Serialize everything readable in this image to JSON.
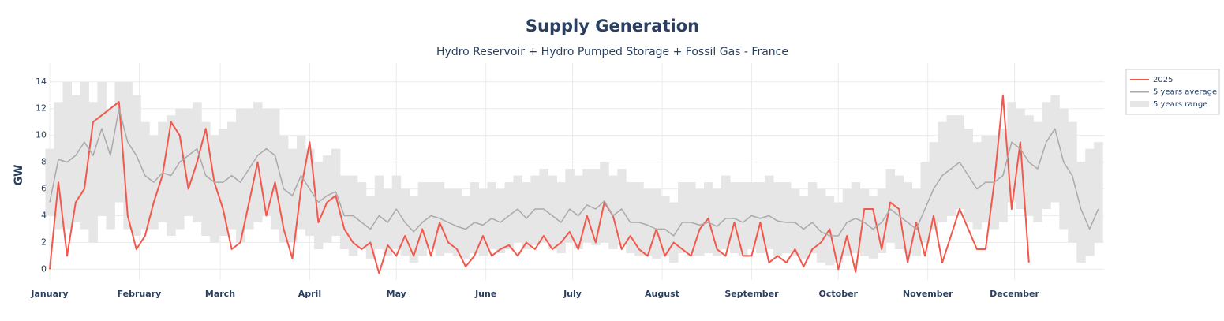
{
  "chart_data": {
    "type": "line",
    "title": "Supply Generation",
    "subtitle": "Hydro Reservoir + Hydro Pumped Storage + Fossil Gas - France",
    "y_label": "GW",
    "xlim": [
      0,
      365
    ],
    "xticks": [
      {
        "value": 0,
        "label": "January"
      },
      {
        "value": 31,
        "label": "February"
      },
      {
        "value": 59,
        "label": "March"
      },
      {
        "value": 90,
        "label": "April"
      },
      {
        "value": 120,
        "label": "May"
      },
      {
        "value": 151,
        "label": "June"
      },
      {
        "value": 181,
        "label": "July"
      },
      {
        "value": 212,
        "label": "August"
      },
      {
        "value": 243,
        "label": "September"
      },
      {
        "value": 273,
        "label": "October"
      },
      {
        "value": 304,
        "label": "November"
      },
      {
        "value": 334,
        "label": "December"
      }
    ],
    "ylim": [
      -0.8,
      15.4
    ],
    "yticks": [
      0,
      2,
      4,
      6,
      8,
      10,
      12,
      14
    ],
    "grid": true,
    "legend": "top-right",
    "x": [
      0,
      3,
      6,
      9,
      12,
      15,
      18,
      21,
      24,
      27,
      30,
      33,
      36,
      39,
      42,
      45,
      48,
      51,
      54,
      57,
      60,
      63,
      66,
      69,
      72,
      75,
      78,
      81,
      84,
      87,
      90,
      93,
      96,
      99,
      102,
      105,
      108,
      111,
      114,
      117,
      120,
      123,
      126,
      129,
      132,
      135,
      138,
      141,
      144,
      147,
      150,
      153,
      156,
      159,
      162,
      165,
      168,
      171,
      174,
      177,
      180,
      183,
      186,
      189,
      192,
      195,
      198,
      201,
      204,
      207,
      210,
      213,
      216,
      219,
      222,
      225,
      228,
      231,
      234,
      237,
      240,
      243,
      246,
      249,
      252,
      255,
      258,
      261,
      264,
      267,
      270,
      273,
      276,
      279,
      282,
      285,
      288,
      291,
      294,
      297,
      300,
      303,
      306,
      309,
      312,
      315,
      318,
      321,
      324,
      327,
      330,
      333,
      336,
      339,
      342,
      345,
      348,
      351,
      354,
      357,
      360,
      363
    ],
    "series": [
      {
        "name": "2025",
        "color": "#f4574b",
        "values": [
          0,
          6.5,
          1,
          5,
          6,
          11,
          11.5,
          12,
          12.5,
          4,
          1.5,
          2.5,
          5,
          7,
          11,
          10,
          6,
          8,
          10.5,
          6.5,
          4.5,
          1.5,
          2,
          5,
          8,
          4,
          6.5,
          3,
          0.8,
          6,
          9.5,
          3.5,
          5,
          5.5,
          3,
          2,
          1.5,
          2,
          -0.3,
          1.8,
          1,
          2.5,
          1,
          3,
          1,
          3.5,
          2,
          1.5,
          0.2,
          1,
          2.5,
          1,
          1.5,
          1.8,
          1,
          2,
          1.5,
          2.5,
          1.5,
          2,
          2.8,
          1.5,
          4,
          2,
          5,
          4,
          1.5,
          2.5,
          1.5,
          1,
          3,
          1,
          2,
          1.5,
          1,
          3,
          3.8,
          1.5,
          1,
          3.5,
          1,
          1,
          3.5,
          0.5,
          1,
          0.5,
          1.5,
          0.2,
          1.5,
          2,
          3,
          0,
          2.5,
          -0.2,
          4.5,
          4.5,
          1.5,
          5,
          4.5,
          0.5,
          3.5,
          1,
          4,
          0.5,
          2.5,
          4.5,
          3,
          1.5,
          1.5,
          6.5,
          13,
          4.5,
          9.5,
          0.5,
          null,
          null,
          null,
          null,
          null,
          null,
          null,
          null
        ]
      },
      {
        "name": "5 years average",
        "color": "#aaaaaa",
        "values": [
          5,
          8.2,
          8,
          8.5,
          9.5,
          8.5,
          10.5,
          8.5,
          12,
          9.5,
          8.5,
          7,
          6.5,
          7.2,
          7,
          8,
          8.5,
          9,
          7,
          6.5,
          6.5,
          7,
          6.5,
          7.5,
          8.5,
          9,
          8.5,
          6,
          5.5,
          7,
          6,
          5,
          5.5,
          5.8,
          4,
          4,
          3.5,
          3,
          4,
          3.5,
          4.5,
          3.5,
          2.8,
          3.5,
          4,
          3.8,
          3.5,
          3.2,
          3,
          3.5,
          3.3,
          3.8,
          3.5,
          4,
          4.5,
          3.8,
          4.5,
          4.5,
          4,
          3.5,
          4.5,
          4,
          4.8,
          4.5,
          5.1,
          4,
          4.5,
          3.5,
          3.5,
          3.3,
          3,
          3,
          2.5,
          3.5,
          3.5,
          3.3,
          3.5,
          3.2,
          3.8,
          3.8,
          3.5,
          4,
          3.8,
          4,
          3.6,
          3.5,
          3.5,
          3,
          3.5,
          2.8,
          2.5,
          2.5,
          3.5,
          3.8,
          3.5,
          3,
          3.5,
          4.5,
          4,
          3.5,
          3,
          4.5,
          6,
          7,
          7.5,
          8,
          7,
          6,
          6.5,
          6.5,
          7,
          9.5,
          9,
          8,
          7.5,
          9.5,
          10.5,
          8,
          7,
          4.5,
          3,
          4.5
        ]
      },
      {
        "name": "5 years range",
        "color": "#e6e6e6",
        "lower": [
          4,
          3,
          3,
          3.5,
          3,
          2,
          4,
          3,
          5,
          3,
          2.5,
          3,
          3,
          3.5,
          2.5,
          3,
          4,
          3.5,
          2.5,
          2,
          2.5,
          3,
          2,
          3,
          3.5,
          4,
          3,
          2,
          2,
          3,
          2.5,
          1.5,
          2,
          2.5,
          1.5,
          1,
          1.5,
          0.8,
          1.5,
          1,
          1.5,
          1,
          0.5,
          1,
          1.5,
          1,
          1.2,
          1,
          0.8,
          1.2,
          1,
          1.5,
          1.2,
          1.5,
          2,
          1.5,
          1.8,
          2,
          1.5,
          1.2,
          2,
          1.5,
          2,
          1.8,
          2,
          1.5,
          1.8,
          1.2,
          1,
          1,
          0.8,
          1,
          0.5,
          1.2,
          1,
          1,
          1.2,
          1,
          1.5,
          1.2,
          1,
          1.5,
          1.2,
          1.5,
          1,
          1.2,
          1,
          0.8,
          1.2,
          0.5,
          0.3,
          0.5,
          1,
          1.2,
          1,
          0.8,
          1.2,
          2,
          1.5,
          1.2,
          1,
          2,
          3,
          3.5,
          4,
          4.5,
          3.5,
          3,
          3.5,
          3,
          3.5,
          5,
          4.5,
          4,
          3.5,
          4.5,
          5,
          3,
          2,
          0.5,
          1,
          2
        ],
        "upper": [
          9,
          12.5,
          14,
          13,
          14,
          12.5,
          14,
          12,
          14,
          14,
          13,
          11,
          10,
          11,
          11.5,
          12,
          12,
          12.5,
          11,
          10,
          10.5,
          11,
          12,
          12,
          12.5,
          12,
          12,
          10,
          9,
          10,
          9,
          8,
          8.5,
          9,
          7,
          7,
          6.5,
          5.5,
          7,
          6,
          7,
          6,
          5.5,
          6.5,
          6.5,
          6.5,
          6,
          6,
          5.5,
          6.5,
          6,
          6.5,
          6,
          6.5,
          7,
          6.5,
          7,
          7.5,
          7,
          6.5,
          7.5,
          7,
          7.5,
          7.5,
          8,
          7,
          7.5,
          6.5,
          6.5,
          6,
          6,
          5.5,
          5,
          6.5,
          6.5,
          6,
          6.5,
          6,
          7,
          6.5,
          6.5,
          6.5,
          6.5,
          7,
          6.5,
          6.5,
          6,
          5.5,
          6.5,
          6,
          5.5,
          5,
          6,
          6.5,
          6,
          5.5,
          6,
          7.5,
          7,
          6.5,
          6,
          8,
          9.5,
          11,
          11.5,
          11.5,
          10.5,
          9.5,
          10,
          10,
          10.5,
          12.5,
          12,
          11.5,
          11,
          12.5,
          13,
          12,
          11,
          8,
          9,
          9.5
        ]
      }
    ]
  }
}
